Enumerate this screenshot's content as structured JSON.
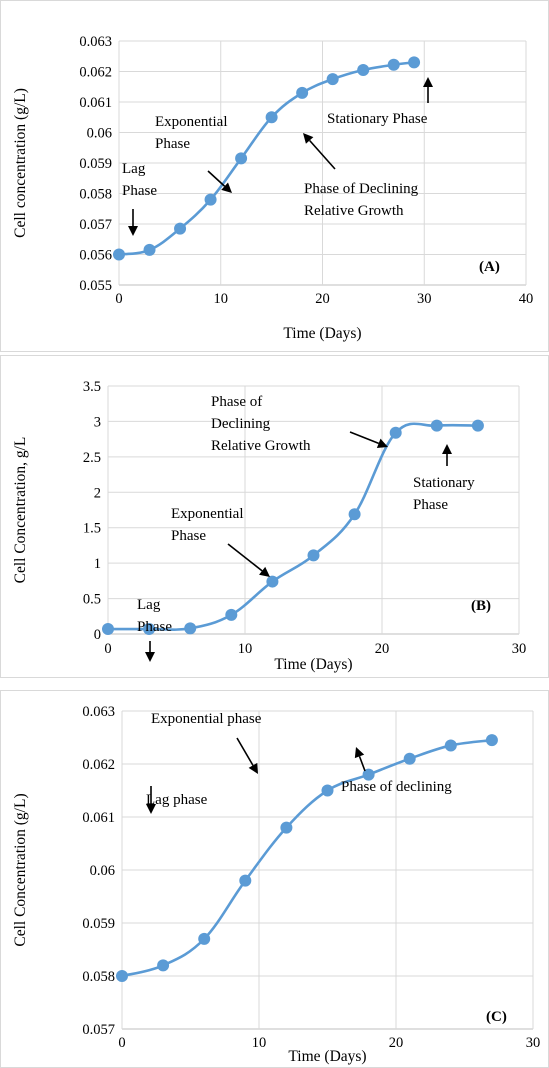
{
  "chart_data": [
    {
      "type": "line",
      "panel_label": "(A)",
      "xlabel": "Time (Days)",
      "ylabel": "Cell concentration (g/L)",
      "xlim": [
        0,
        40
      ],
      "ylim": [
        0.055,
        0.063
      ],
      "x_ticks": [
        "0",
        "10",
        "20",
        "30",
        "40"
      ],
      "y_ticks": [
        "0.055",
        "0.056",
        "0.057",
        "0.058",
        "0.059",
        "0.06",
        "0.061",
        "0.062",
        "0.063"
      ],
      "grid": true,
      "series_color": "#5b9bd5",
      "x": [
        0,
        3,
        6,
        9,
        12,
        15,
        18,
        21,
        24,
        27,
        29
      ],
      "y": [
        0.056,
        0.05615,
        0.05685,
        0.0578,
        0.05915,
        0.0605,
        0.0613,
        0.06175,
        0.06205,
        0.06222,
        0.0623
      ],
      "annotations": [
        {
          "lines": [
            "Lag",
            "Phase"
          ]
        },
        {
          "lines": [
            "Exponential",
            "Phase"
          ]
        },
        {
          "lines": [
            "Phase of Declining",
            "Relative Growth"
          ]
        },
        {
          "lines": [
            "Stationary Phase"
          ]
        }
      ]
    },
    {
      "type": "line",
      "panel_label": "(B)",
      "xlabel": "Time  (Days)",
      "ylabel": "Cell Concentration, g/L",
      "xlim": [
        0,
        30
      ],
      "ylim": [
        0,
        3.5
      ],
      "x_ticks": [
        "0",
        "10",
        "20",
        "30"
      ],
      "y_ticks": [
        "0",
        "0.5",
        "1",
        "1.5",
        "2",
        "2.5",
        "3",
        "3.5"
      ],
      "grid": true,
      "series_color": "#5b9bd5",
      "x": [
        0,
        3,
        6,
        9,
        12,
        15,
        18,
        21,
        24,
        27
      ],
      "y": [
        0.07,
        0.07,
        0.08,
        0.27,
        0.74,
        1.11,
        1.69,
        2.84,
        2.94,
        2.94
      ],
      "annotations": [
        {
          "lines": [
            "Lag",
            "Phase"
          ]
        },
        {
          "lines": [
            "Exponential",
            "Phase"
          ]
        },
        {
          "lines": [
            "Phase of",
            "Declining",
            "Relative Growth"
          ]
        },
        {
          "lines": [
            "Stationary",
            "Phase"
          ]
        }
      ]
    },
    {
      "type": "line",
      "panel_label": "(C)",
      "xlabel": "Time (Days)",
      "ylabel": "Cell Concentration (g/L)",
      "xlim": [
        0,
        30
      ],
      "ylim": [
        0.057,
        0.063
      ],
      "x_ticks": [
        "0",
        "10",
        "20",
        "30"
      ],
      "y_ticks": [
        "0.057",
        "0.058",
        "0.059",
        "0.06",
        "0.061",
        "0.062",
        "0.063"
      ],
      "grid": true,
      "series_color": "#5b9bd5",
      "x": [
        0,
        3,
        6,
        9,
        12,
        15,
        18,
        21,
        24,
        27
      ],
      "y": [
        0.058,
        0.0582,
        0.0587,
        0.0598,
        0.0608,
        0.0615,
        0.0618,
        0.0621,
        0.06235,
        0.06245
      ],
      "annotations": [
        {
          "lines": [
            "Lag phase"
          ]
        },
        {
          "lines": [
            "Exponential phase"
          ]
        },
        {
          "lines": [
            "Phase of declining"
          ]
        }
      ]
    }
  ]
}
